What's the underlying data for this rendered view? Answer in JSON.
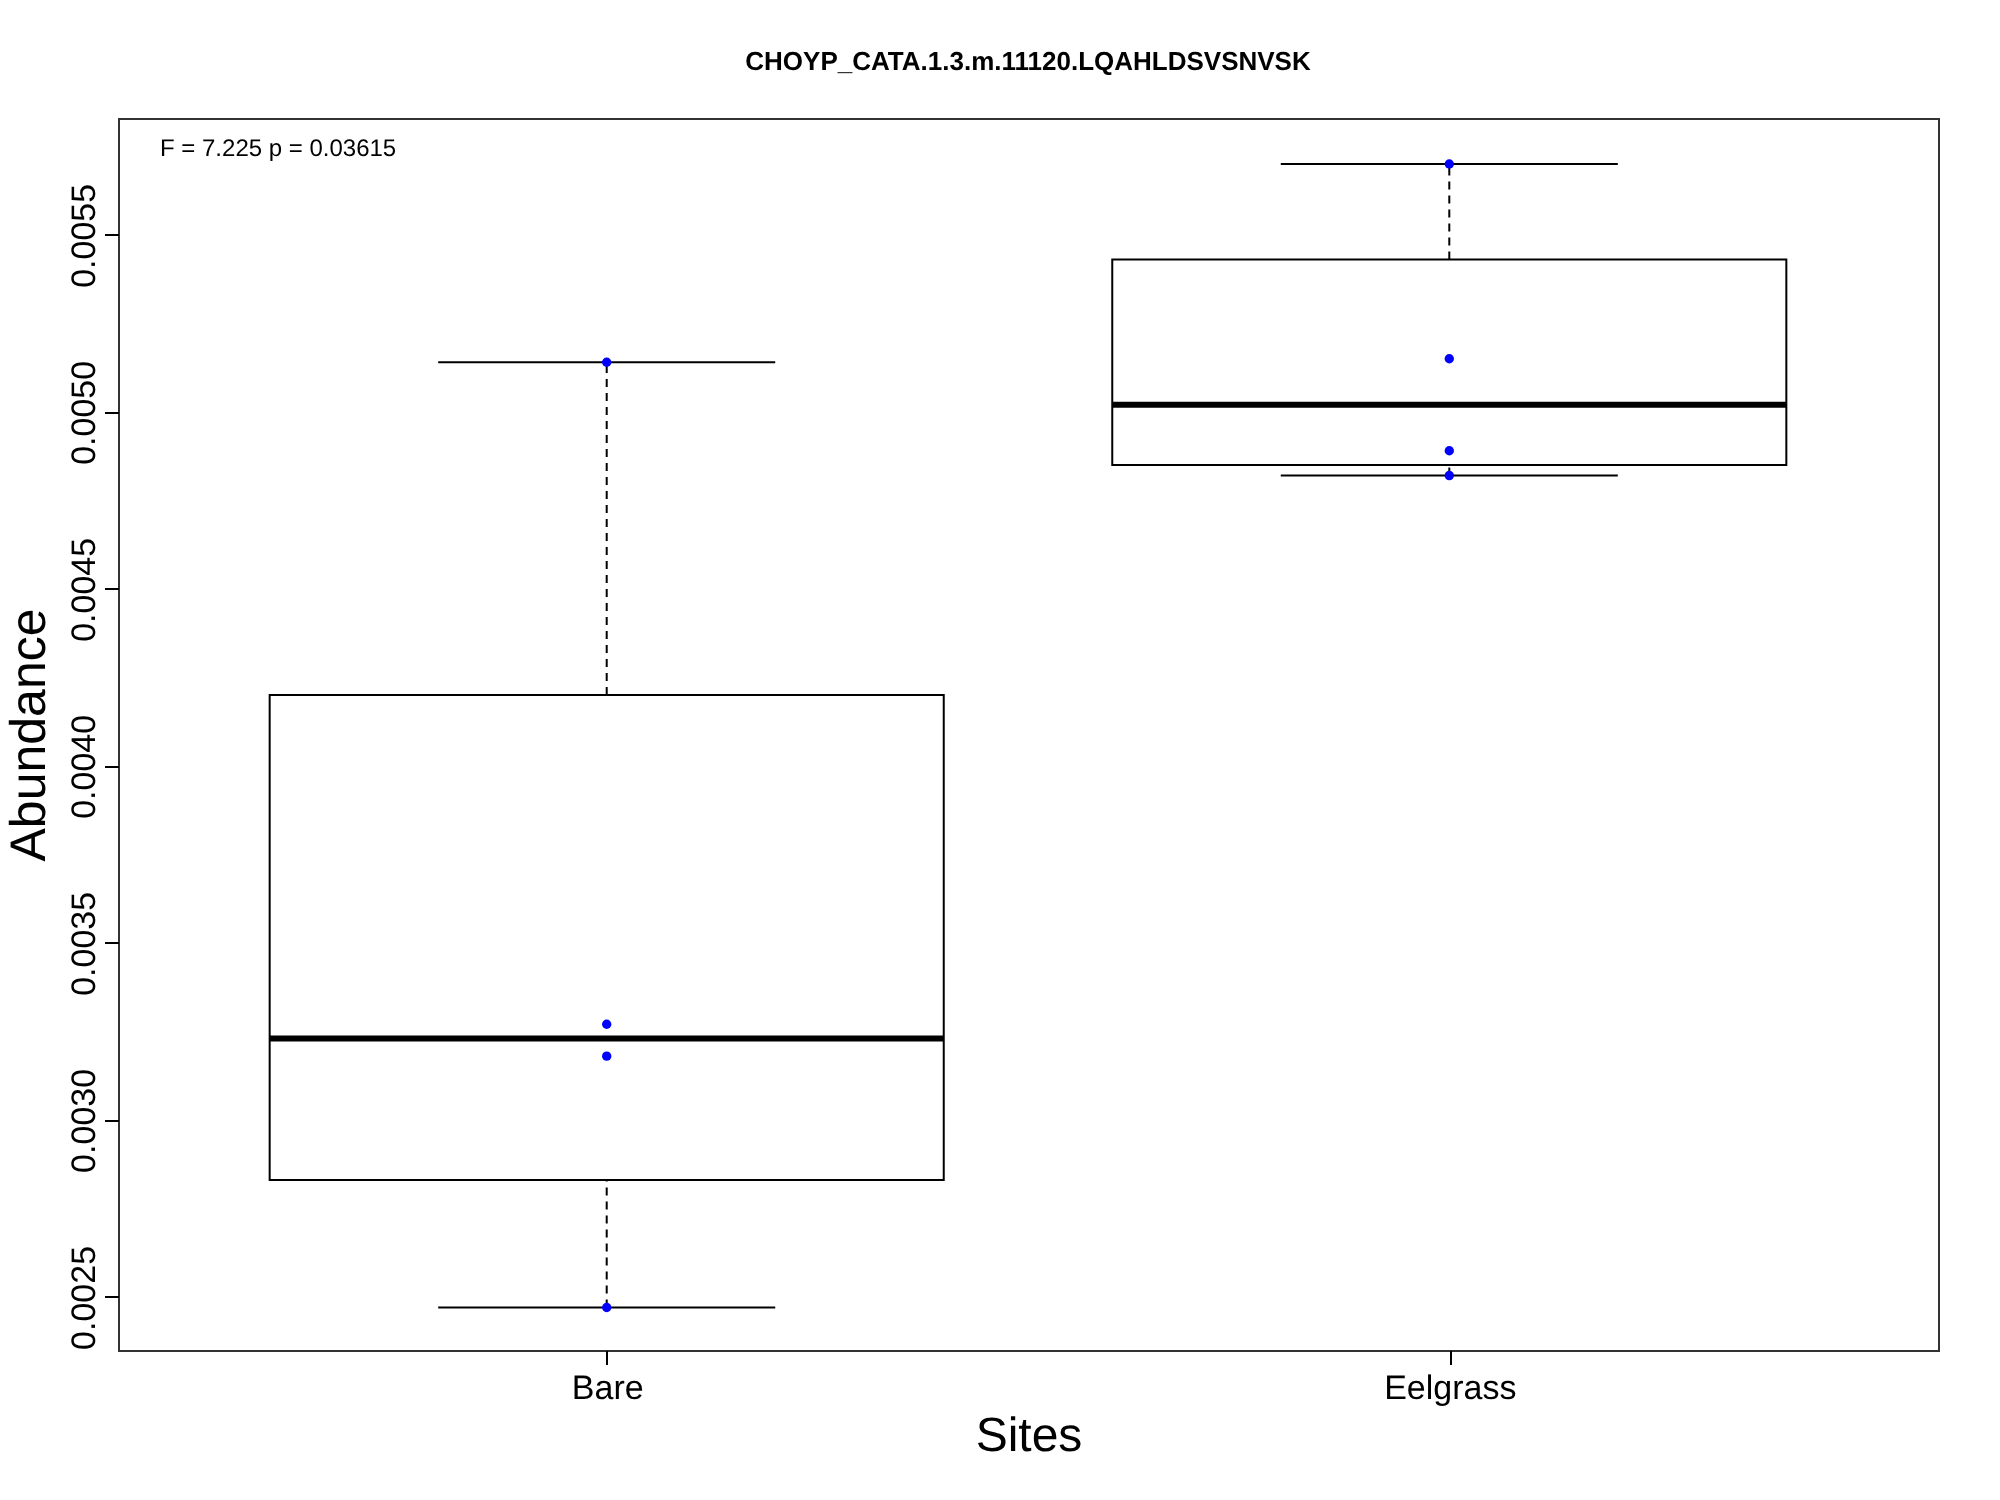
{
  "chart_data": {
    "type": "box",
    "title": "CHOYP_CATA.1.3.m.11120.LQAHLDSVSNVSK",
    "xlabel": "Sites",
    "ylabel": "Abundance",
    "categories": [
      "Bare",
      "Eelgrass"
    ],
    "annotations": [
      "F = 7.225 p = 0.03615"
    ],
    "ylim": [
      0.00235,
      0.00583
    ],
    "yticks": [
      0.0025,
      {
        "value": 0.003,
        "label": "0.0030"
      },
      0.0035,
      {
        "value": 0.004,
        "label": "0.0040"
      },
      0.0045,
      {
        "value": 0.005,
        "label": "0.0050"
      },
      0.0055
    ],
    "series": [
      {
        "type": "box",
        "color": "#000000",
        "boxes": [
          {
            "low": 0.00247,
            "q1": 0.00283,
            "median": 0.00323,
            "q3": 0.0042,
            "high": 0.00514
          },
          {
            "low": 0.00482,
            "q1": 0.00485,
            "median": 0.00502,
            "q3": 0.00543,
            "high": 0.0057
          }
        ]
      },
      {
        "type": "scatter",
        "color": "#0000ff",
        "marker": "circle",
        "x": [
          "Bare",
          "Bare",
          "Bare",
          "Bare",
          "Eelgrass",
          "Eelgrass",
          "Eelgrass",
          "Eelgrass"
        ],
        "values": [
          0.00514,
          0.00327,
          0.00318,
          0.00247,
          0.0057,
          0.00515,
          0.00489,
          0.00482
        ]
      }
    ]
  }
}
